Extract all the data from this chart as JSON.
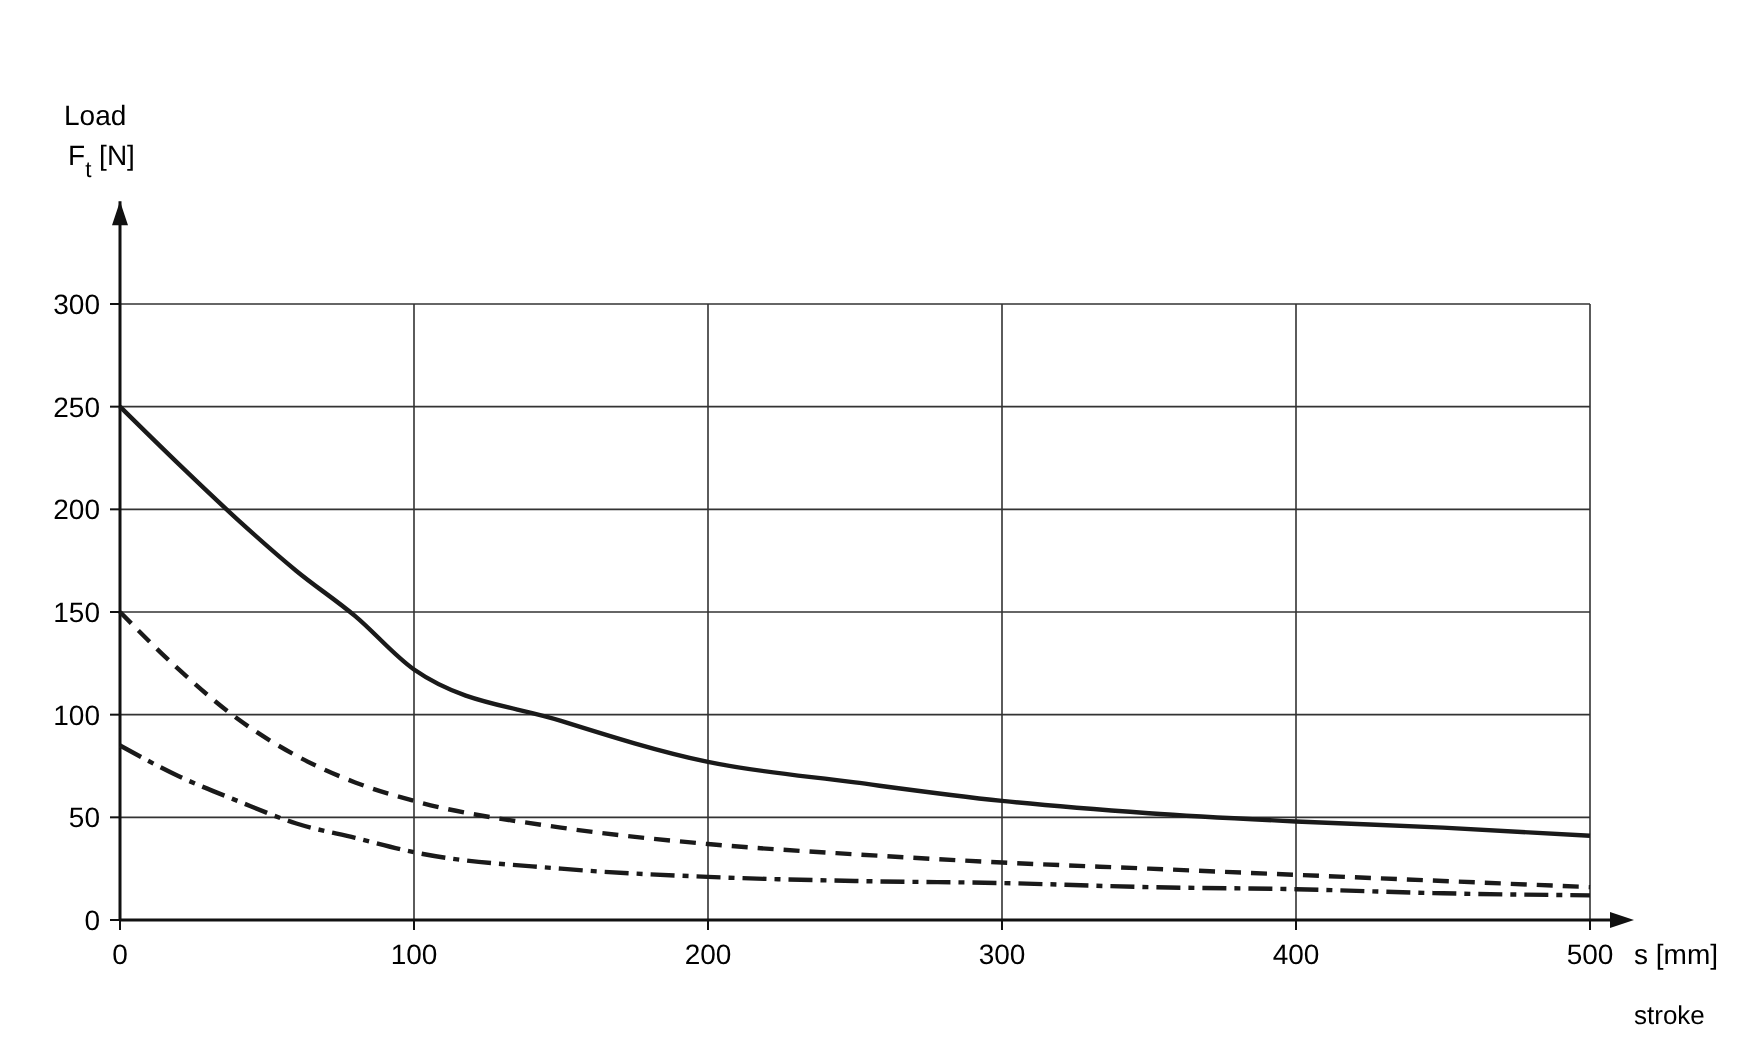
{
  "chart_data": {
    "type": "line",
    "xlabel": "s [mm]\nstroke",
    "ylabel": "Load\nF$_{t}$ [N]",
    "x": [
      0,
      20,
      40,
      60,
      80,
      100,
      150,
      200,
      250,
      300,
      350,
      400,
      450,
      500
    ],
    "series": [
      {
        "color": "#1a1a1a",
        "line_style": "dashdot",
        "values": [
          85,
          70,
          58,
          47,
          40,
          33,
          25,
          21,
          19,
          18,
          16,
          15,
          13,
          12
        ]
      },
      {
        "color": "#1a1a1a",
        "line_style": "dashed",
        "values": [
          150,
          122,
          98,
          80,
          67,
          58,
          45,
          37,
          32,
          28,
          25,
          22,
          19,
          16
        ]
      },
      {
        "color": "#1a1a1a",
        "line_style": "solid",
        "values": [
          250,
          222,
          195,
          170,
          148,
          122,
          97,
          77,
          67,
          58,
          52,
          48,
          45,
          41
        ]
      }
    ],
    "xlim": [
      0,
      500
    ],
    "ylim": [
      0,
      350
    ],
    "xticks": [
      0,
      100,
      200,
      300,
      400,
      500
    ],
    "yticks": [
      0,
      50,
      100,
      150,
      200,
      250,
      300
    ],
    "grid": true,
    "marker": "none"
  }
}
